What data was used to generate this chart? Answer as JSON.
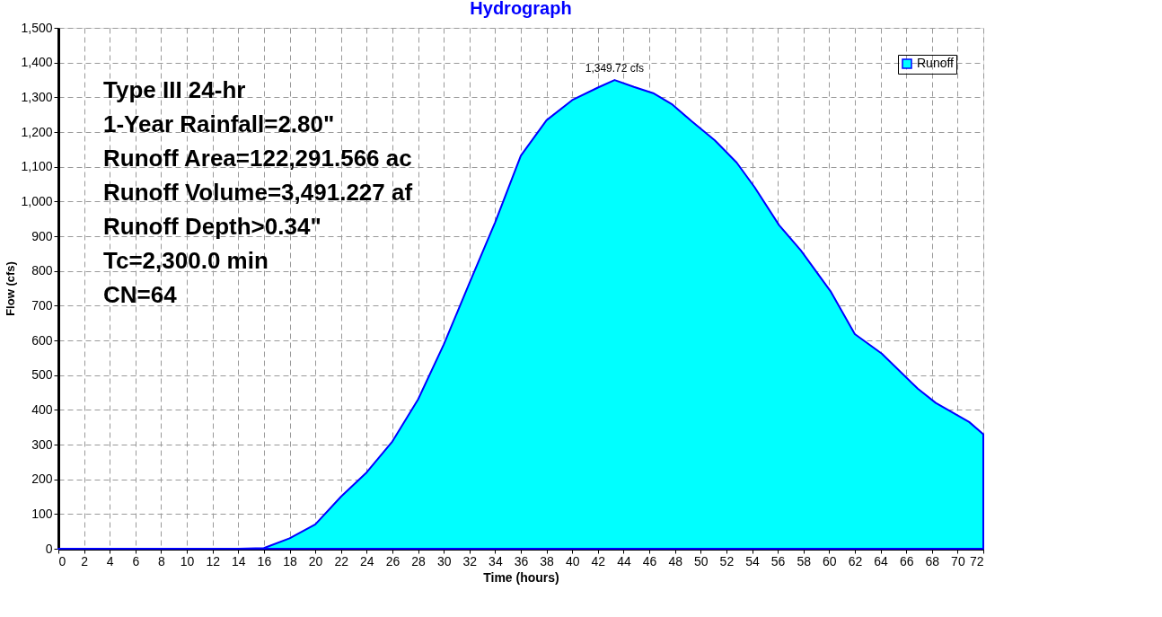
{
  "chart_data": {
    "type": "area",
    "title": "Hydrograph",
    "xlabel": "Time  (hours)",
    "ylabel": "Flow  (cfs)",
    "x": [
      0,
      2,
      4,
      6,
      8,
      10,
      12,
      14,
      16,
      18,
      20,
      22,
      24,
      26,
      28,
      30,
      32,
      34,
      36,
      38,
      40,
      42,
      43.3,
      44.8,
      46.3,
      47.8,
      49.3,
      51.1,
      52.8,
      54.2,
      56.1,
      57.8,
      60.1,
      62,
      64.1,
      66.9,
      68.3,
      70.9,
      72
    ],
    "series": [
      {
        "name": "Runoff",
        "color": "#00ffff",
        "values": [
          0,
          0,
          0,
          0,
          0,
          0,
          0,
          0,
          2,
          30,
          70,
          150,
          220,
          309,
          430,
          588,
          765,
          940,
          1132,
          1234,
          1292,
          1328,
          1349.72,
          1330,
          1312,
          1279,
          1231,
          1176,
          1112,
          1041,
          932,
          859,
          742,
          618,
          562,
          461,
          420,
          365,
          330
        ]
      }
    ],
    "xlim": [
      0,
      72
    ],
    "ylim": [
      0,
      1500
    ],
    "xticks": [
      0,
      2,
      4,
      6,
      8,
      10,
      12,
      14,
      16,
      18,
      20,
      22,
      24,
      26,
      28,
      30,
      32,
      34,
      36,
      38,
      40,
      42,
      44,
      46,
      48,
      50,
      52,
      54,
      56,
      58,
      60,
      62,
      64,
      66,
      68,
      70,
      72
    ],
    "yticks": [
      0,
      100,
      200,
      300,
      400,
      500,
      600,
      700,
      800,
      900,
      {
        "value": 1000,
        "label": "1,000"
      },
      {
        "value": 1100,
        "label": "1,100"
      },
      {
        "value": 1200,
        "label": "1,200"
      },
      {
        "value": 1300,
        "label": "1,300"
      },
      {
        "value": 1400,
        "label": "1,400"
      },
      {
        "value": 1500,
        "label": "1,500"
      }
    ],
    "annotations": [
      "Type III 24-hr",
      "1-Year Rainfall=2.80\"",
      "Runoff Area=122,291.566 ac",
      "Runoff Volume=3,491.227 af",
      "Runoff Depth>0.34\"",
      "Tc=2,300.0 min",
      "CN=64",
      {
        "text": "1,349.72 cfs",
        "x": 43.3,
        "y": 1349.72
      }
    ],
    "grid": true,
    "legend": "top right"
  }
}
